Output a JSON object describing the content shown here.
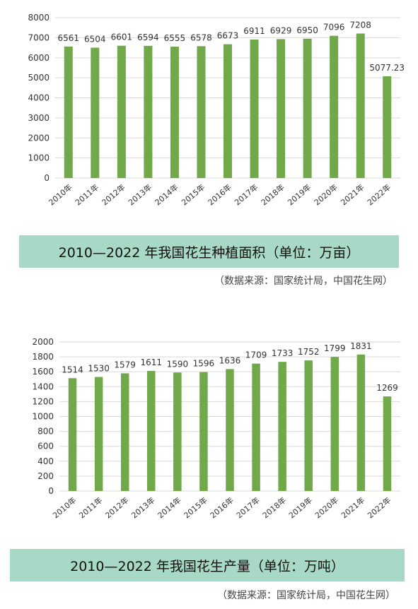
{
  "colors": {
    "bar": "#70a84a",
    "grid": "#d9d9d9",
    "caption_bg": "#a8d8c6"
  },
  "captions": [
    {
      "title": "2010—2022 年我国花生种植面积（单位：万亩）",
      "source": "（数据来源：国家统计局，中国花生网）"
    },
    {
      "title": "2010—2022 年我国花生产量（单位：万吨）",
      "source": "（数据来源：国家统计局，中国花生网）"
    }
  ],
  "chart_data": [
    {
      "type": "bar",
      "categories": [
        "2010年",
        "2011年",
        "2012年",
        "2013年",
        "2014年",
        "2015年",
        "2016年",
        "2017年",
        "2018年",
        "2019年",
        "2020年",
        "2021年",
        "2022年"
      ],
      "values": [
        6561,
        6504,
        6601,
        6594,
        6555,
        6578,
        6673,
        6911,
        6929,
        6950,
        7096,
        7208,
        5077.23
      ],
      "value_labels": [
        "6561",
        "6504",
        "6601",
        "6594",
        "6555",
        "6578",
        "6673",
        "6911",
        "6929",
        "6950",
        "7096",
        "7208",
        "5077.23"
      ],
      "ylim": [
        0,
        8000
      ],
      "yticks": [
        0,
        1000,
        2000,
        3000,
        4000,
        5000,
        6000,
        7000,
        8000
      ],
      "grid": true,
      "title": "2010—2022 年我国花生种植面积（单位：万亩）"
    },
    {
      "type": "bar",
      "categories": [
        "2010年",
        "2011年",
        "2012年",
        "2013年",
        "2014年",
        "2015年",
        "2016年",
        "2017年",
        "2018年",
        "2019年",
        "2020年",
        "2021年",
        "2022年"
      ],
      "values": [
        1514,
        1530,
        1579,
        1611,
        1590,
        1596,
        1636,
        1709,
        1733,
        1752,
        1799,
        1831,
        1269
      ],
      "value_labels": [
        "1514",
        "1530",
        "1579",
        "1611",
        "1590",
        "1596",
        "1636",
        "1709",
        "1733",
        "1752",
        "1799",
        "1831",
        "1269"
      ],
      "ylim": [
        0,
        2000
      ],
      "yticks": [
        0,
        200,
        400,
        600,
        800,
        1000,
        1200,
        1400,
        1600,
        1800,
        2000
      ],
      "grid": true,
      "title": "2010—2022 年我国花生产量（单位：万吨）"
    }
  ]
}
